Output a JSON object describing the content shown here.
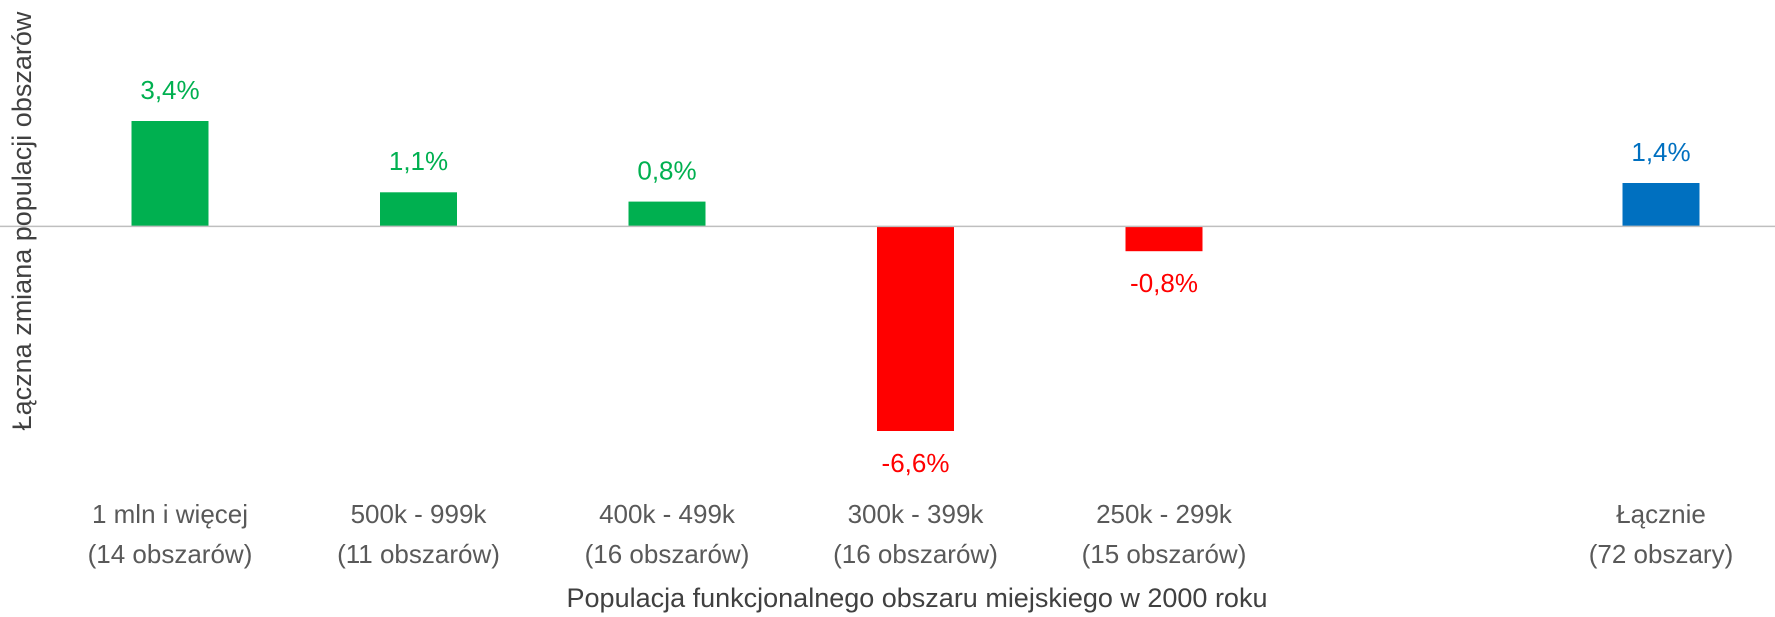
{
  "chart_data": {
    "type": "bar",
    "x_label": "Populacja funkcjonalnego obszaru miejskiego w 2000 roku",
    "y_label": "Łączna zmiana populacji obszarów",
    "categories": [
      [
        "1 mln i więcej",
        "(14 obszarów)"
      ],
      [
        "500k - 999k",
        "(11 obszarów)"
      ],
      [
        "400k - 499k",
        "(16 obszarów)"
      ],
      [
        "300k - 399k",
        "(16 obszarów)"
      ],
      [
        "250k - 299k",
        "(15 obszarów)"
      ],
      null,
      [
        "Łącznie",
        "(72 obszary)"
      ]
    ],
    "values": [
      3.4,
      1.1,
      0.8,
      -6.6,
      -0.8,
      null,
      1.4
    ],
    "value_labels": [
      "3,4%",
      "1,1%",
      "0,8%",
      "-6,6%",
      "-0,8%",
      null,
      "1,4%"
    ],
    "colors": [
      "#00b050",
      "#00b050",
      "#00b050",
      "#ff0000",
      "#ff0000",
      null,
      "#0070c0"
    ]
  }
}
